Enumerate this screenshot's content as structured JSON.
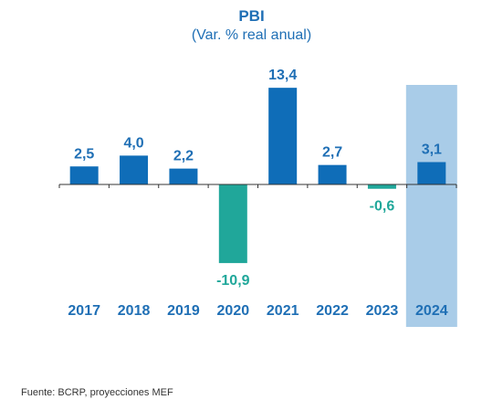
{
  "chart_data": {
    "type": "bar",
    "title": "PBI",
    "subtitle": "(Var. % real anual)",
    "categories": [
      "2017",
      "2018",
      "2019",
      "2020",
      "2021",
      "2022",
      "2023",
      "2024"
    ],
    "values": [
      2.5,
      4.0,
      2.2,
      -10.9,
      13.4,
      2.7,
      -0.6,
      3.1
    ],
    "value_labels": [
      "2,5",
      "4,0",
      "2,2",
      "-10,9",
      "13,4",
      "2,7",
      "-0,6",
      "3,1"
    ],
    "highlight_category": "2024",
    "grid": false,
    "legend": "none",
    "colors": {
      "positive": "#0f6db8",
      "negative": "#20a79a",
      "highlight_band": "#a9cce8",
      "text": "#1f6fb5",
      "axis": "#333333"
    }
  },
  "source": "Fuente: BCRP, proyecciones MEF"
}
